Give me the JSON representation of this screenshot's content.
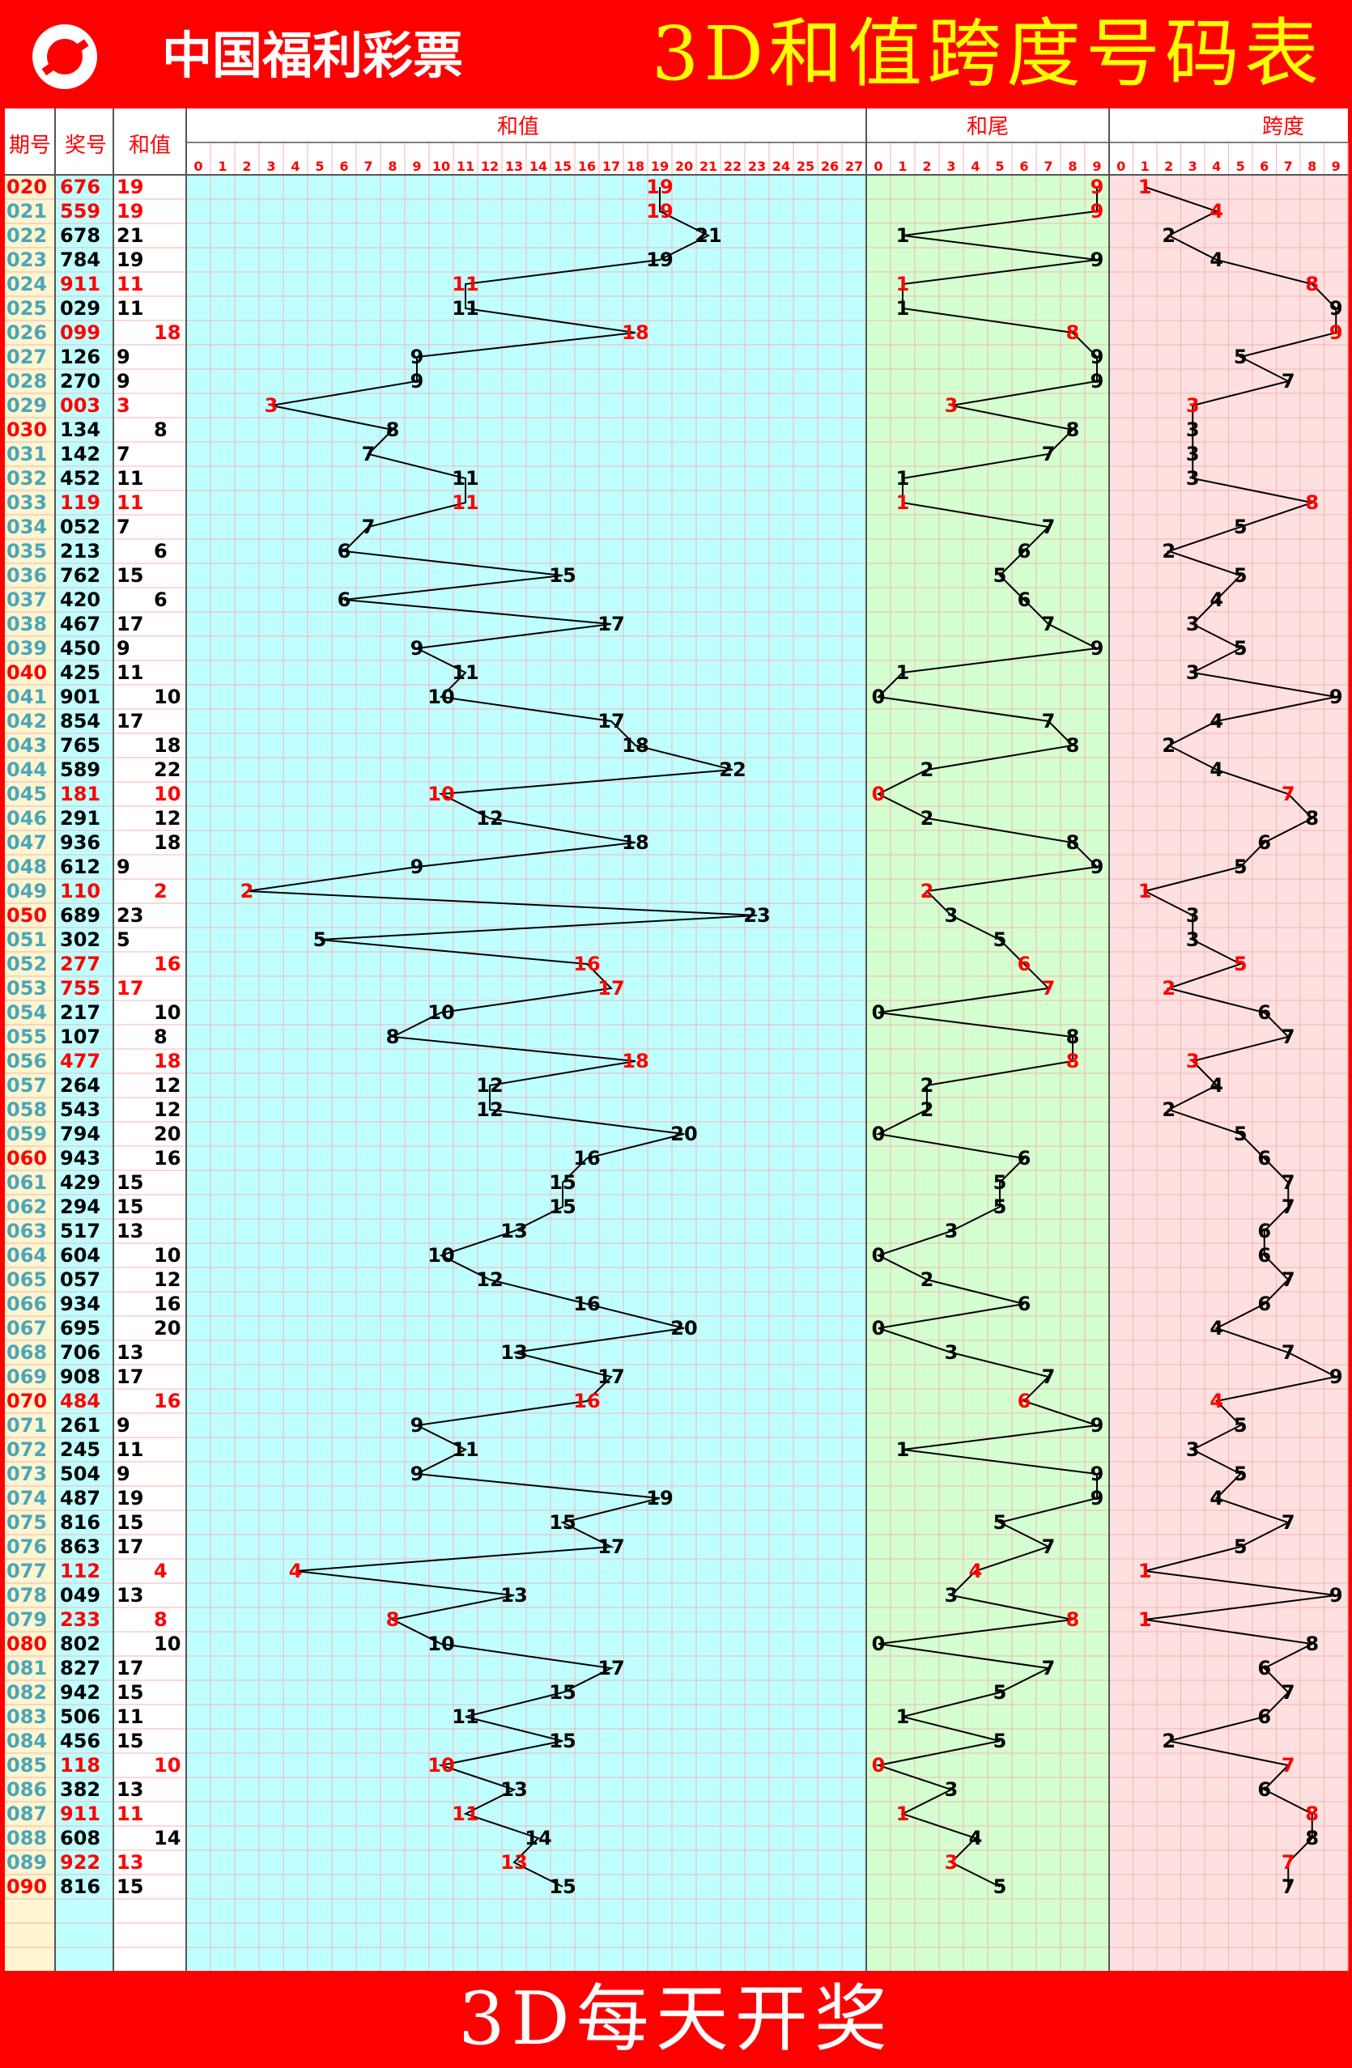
{
  "header": {
    "brand_cn": "中国福利彩票",
    "title": "3D和值跨度号码表",
    "title_color": "#ffff00",
    "bar_color": "#ff0000"
  },
  "columns": {
    "period": "期号",
    "number": "奖号",
    "sum": "和值",
    "sum_chart": "和值",
    "tail_chart": "和尾",
    "span_chart": "跨度"
  },
  "footer": {
    "text": "3D每天开奖"
  },
  "colors": {
    "period_bg": "#fff5d0",
    "number_bg": "#c0ffff",
    "sum_bg": "#ffffff",
    "sum_chart_bg": "#c0ffff",
    "tail_chart_bg": "#d4ffd0",
    "span_chart_bg": "#ffe0e0",
    "highlight": "#ff0000",
    "period_normal": "#4aa6b8",
    "grid": "#f3b4b4"
  },
  "chart_data": {
    "type": "table",
    "columns": [
      "期号",
      "奖号",
      "和值",
      "和尾",
      "跨度"
    ],
    "sum_axis": [
      0,
      27
    ],
    "tail_axis": [
      0,
      9
    ],
    "span_axis": [
      0,
      9
    ],
    "rows": [
      {
        "period": "020",
        "number": "676",
        "sum": 19,
        "tail": 9,
        "span": 1
      },
      {
        "period": "021",
        "number": "559",
        "sum": 19,
        "tail": 9,
        "span": 4
      },
      {
        "period": "022",
        "number": "678",
        "sum": 21,
        "tail": 1,
        "span": 2
      },
      {
        "period": "023",
        "number": "784",
        "sum": 19,
        "tail": 9,
        "span": 4
      },
      {
        "period": "024",
        "number": "911",
        "sum": 11,
        "tail": 1,
        "span": 8
      },
      {
        "period": "025",
        "number": "029",
        "sum": 11,
        "tail": 1,
        "span": 9
      },
      {
        "period": "026",
        "number": "099",
        "sum": 18,
        "tail": 8,
        "span": 9
      },
      {
        "period": "027",
        "number": "126",
        "sum": 9,
        "tail": 9,
        "span": 5
      },
      {
        "period": "028",
        "number": "270",
        "sum": 9,
        "tail": 9,
        "span": 7
      },
      {
        "period": "029",
        "number": "003",
        "sum": 3,
        "tail": 3,
        "span": 3
      },
      {
        "period": "030",
        "number": "134",
        "sum": 8,
        "tail": 8,
        "span": 3
      },
      {
        "period": "031",
        "number": "142",
        "sum": 7,
        "tail": 7,
        "span": 3
      },
      {
        "period": "032",
        "number": "452",
        "sum": 11,
        "tail": 1,
        "span": 3
      },
      {
        "period": "033",
        "number": "119",
        "sum": 11,
        "tail": 1,
        "span": 8
      },
      {
        "period": "034",
        "number": "052",
        "sum": 7,
        "tail": 7,
        "span": 5
      },
      {
        "period": "035",
        "number": "213",
        "sum": 6,
        "tail": 6,
        "span": 2
      },
      {
        "period": "036",
        "number": "762",
        "sum": 15,
        "tail": 5,
        "span": 5
      },
      {
        "period": "037",
        "number": "420",
        "sum": 6,
        "tail": 6,
        "span": 4
      },
      {
        "period": "038",
        "number": "467",
        "sum": 17,
        "tail": 7,
        "span": 3
      },
      {
        "period": "039",
        "number": "450",
        "sum": 9,
        "tail": 9,
        "span": 5
      },
      {
        "period": "040",
        "number": "425",
        "sum": 11,
        "tail": 1,
        "span": 3
      },
      {
        "period": "041",
        "number": "901",
        "sum": 10,
        "tail": 0,
        "span": 9
      },
      {
        "period": "042",
        "number": "854",
        "sum": 17,
        "tail": 7,
        "span": 4
      },
      {
        "period": "043",
        "number": "765",
        "sum": 18,
        "tail": 8,
        "span": 2
      },
      {
        "period": "044",
        "number": "589",
        "sum": 22,
        "tail": 2,
        "span": 4
      },
      {
        "period": "045",
        "number": "181",
        "sum": 10,
        "tail": 0,
        "span": 7
      },
      {
        "period": "046",
        "number": "291",
        "sum": 12,
        "tail": 2,
        "span": 8
      },
      {
        "period": "047",
        "number": "936",
        "sum": 18,
        "tail": 8,
        "span": 6
      },
      {
        "period": "048",
        "number": "612",
        "sum": 9,
        "tail": 9,
        "span": 5
      },
      {
        "period": "049",
        "number": "110",
        "sum": 2,
        "tail": 2,
        "span": 1
      },
      {
        "period": "050",
        "number": "689",
        "sum": 23,
        "tail": 3,
        "span": 3
      },
      {
        "period": "051",
        "number": "302",
        "sum": 5,
        "tail": 5,
        "span": 3
      },
      {
        "period": "052",
        "number": "277",
        "sum": 16,
        "tail": 6,
        "span": 5
      },
      {
        "period": "053",
        "number": "755",
        "sum": 17,
        "tail": 7,
        "span": 2
      },
      {
        "period": "054",
        "number": "217",
        "sum": 10,
        "tail": 0,
        "span": 6
      },
      {
        "period": "055",
        "number": "107",
        "sum": 8,
        "tail": 8,
        "span": 7
      },
      {
        "period": "056",
        "number": "477",
        "sum": 18,
        "tail": 8,
        "span": 3
      },
      {
        "period": "057",
        "number": "264",
        "sum": 12,
        "tail": 2,
        "span": 4
      },
      {
        "period": "058",
        "number": "543",
        "sum": 12,
        "tail": 2,
        "span": 2
      },
      {
        "period": "059",
        "number": "794",
        "sum": 20,
        "tail": 0,
        "span": 5
      },
      {
        "period": "060",
        "number": "943",
        "sum": 16,
        "tail": 6,
        "span": 6
      },
      {
        "period": "061",
        "number": "429",
        "sum": 15,
        "tail": 5,
        "span": 7
      },
      {
        "period": "062",
        "number": "294",
        "sum": 15,
        "tail": 5,
        "span": 7
      },
      {
        "period": "063",
        "number": "517",
        "sum": 13,
        "tail": 3,
        "span": 6
      },
      {
        "period": "064",
        "number": "604",
        "sum": 10,
        "tail": 0,
        "span": 6
      },
      {
        "period": "065",
        "number": "057",
        "sum": 12,
        "tail": 2,
        "span": 7
      },
      {
        "period": "066",
        "number": "934",
        "sum": 16,
        "tail": 6,
        "span": 6
      },
      {
        "period": "067",
        "number": "695",
        "sum": 20,
        "tail": 0,
        "span": 4
      },
      {
        "period": "068",
        "number": "706",
        "sum": 13,
        "tail": 3,
        "span": 7
      },
      {
        "period": "069",
        "number": "908",
        "sum": 17,
        "tail": 7,
        "span": 9
      },
      {
        "period": "070",
        "number": "484",
        "sum": 16,
        "tail": 6,
        "span": 4
      },
      {
        "period": "071",
        "number": "261",
        "sum": 9,
        "tail": 9,
        "span": 5
      },
      {
        "period": "072",
        "number": "245",
        "sum": 11,
        "tail": 1,
        "span": 3
      },
      {
        "period": "073",
        "number": "504",
        "sum": 9,
        "tail": 9,
        "span": 5
      },
      {
        "period": "074",
        "number": "487",
        "sum": 19,
        "tail": 9,
        "span": 4
      },
      {
        "period": "075",
        "number": "816",
        "sum": 15,
        "tail": 5,
        "span": 7
      },
      {
        "period": "076",
        "number": "863",
        "sum": 17,
        "tail": 7,
        "span": 5
      },
      {
        "period": "077",
        "number": "112",
        "sum": 4,
        "tail": 4,
        "span": 1
      },
      {
        "period": "078",
        "number": "049",
        "sum": 13,
        "tail": 3,
        "span": 9
      },
      {
        "period": "079",
        "number": "233",
        "sum": 8,
        "tail": 8,
        "span": 1
      },
      {
        "period": "080",
        "number": "802",
        "sum": 10,
        "tail": 0,
        "span": 8
      },
      {
        "period": "081",
        "number": "827",
        "sum": 17,
        "tail": 7,
        "span": 6
      },
      {
        "period": "082",
        "number": "942",
        "sum": 15,
        "tail": 5,
        "span": 7
      },
      {
        "period": "083",
        "number": "506",
        "sum": 11,
        "tail": 1,
        "span": 6
      },
      {
        "period": "084",
        "number": "456",
        "sum": 15,
        "tail": 5,
        "span": 2
      },
      {
        "period": "085",
        "number": "118",
        "sum": 10,
        "tail": 0,
        "span": 7
      },
      {
        "period": "086",
        "number": "382",
        "sum": 13,
        "tail": 3,
        "span": 6
      },
      {
        "period": "087",
        "number": "911",
        "sum": 11,
        "tail": 1,
        "span": 8
      },
      {
        "period": "088",
        "number": "608",
        "sum": 14,
        "tail": 4,
        "span": 8
      },
      {
        "period": "089",
        "number": "922",
        "sum": 13,
        "tail": 3,
        "span": 7
      },
      {
        "period": "090",
        "number": "816",
        "sum": 15,
        "tail": 5,
        "span": 7
      }
    ]
  }
}
